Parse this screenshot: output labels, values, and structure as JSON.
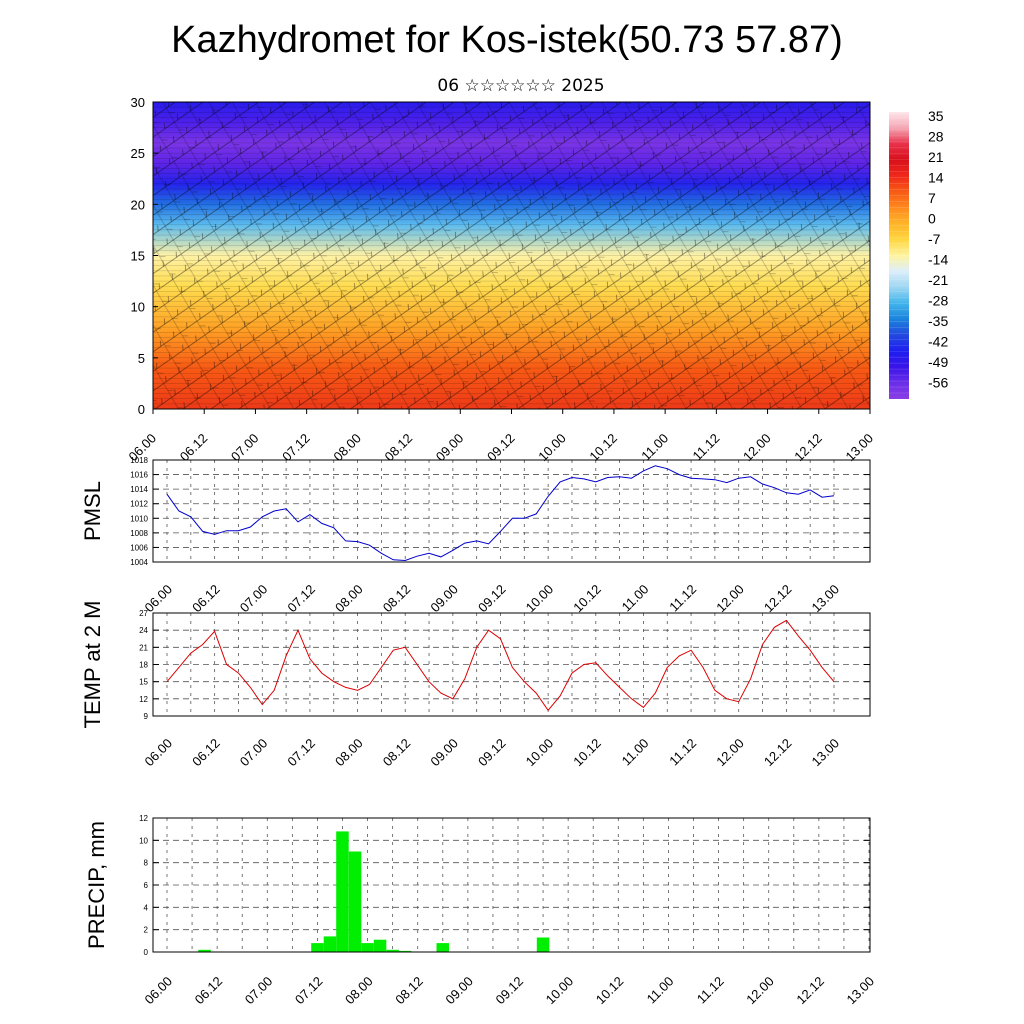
{
  "header": {
    "title": "Kazhydromet for Kos-istek(50.73 57.87)",
    "subtitle": "06 ☆☆☆☆☆☆ 2025"
  },
  "time_ticks": [
    "06.00",
    "06.12",
    "07.00",
    "07.12",
    "08.00",
    "08.12",
    "09.00",
    "09.12",
    "10.00",
    "10.12",
    "11.00",
    "11.12",
    "12.00",
    "12.12",
    "13.00"
  ],
  "colors": {
    "pmsl_line": "#0000cc",
    "temp_line": "#dd0000",
    "precip_bar": "#00ee00",
    "grid": "#555555"
  },
  "chart_data": [
    {
      "type": "heatmap",
      "name": "cross-section",
      "x": "time_ticks",
      "xlim": [
        0,
        168
      ],
      "ylim": [
        0,
        30
      ],
      "yticks": [
        0,
        5,
        10,
        15,
        20,
        25,
        30
      ],
      "has_wind_barbs": true,
      "colorbar": {
        "labels": [
          "35",
          "28",
          "21",
          "14",
          "7",
          "0",
          "-7",
          "-14",
          "-21",
          "-28",
          "-35",
          "-42",
          "-49",
          "-56"
        ],
        "colors": [
          "#ffe6ea",
          "#f4a6b4",
          "#e9304a",
          "#d8101c",
          "#f0281a",
          "#f85a14",
          "#ff8a1e",
          "#ffb428",
          "#ffd640",
          "#fff4a0",
          "#dceefa",
          "#9dd6f2",
          "#42b4ec",
          "#1a82dc",
          "#2248e0",
          "#1e1ef0",
          "#3a14e8",
          "#6a2ee8",
          "#8a3ee6"
        ]
      },
      "profile": {
        "levels": [
          0,
          4,
          8,
          12,
          15,
          18,
          20,
          22,
          24,
          26,
          28,
          30
        ],
        "values": [
          24,
          20,
          10,
          0,
          -6,
          -22,
          -33,
          -45,
          -54,
          -58,
          -52,
          -47
        ]
      }
    },
    {
      "type": "line",
      "ylabel": "PMSL",
      "ylim": [
        1004,
        1018
      ],
      "yticks": [
        1004,
        1006,
        1008,
        1010,
        1012,
        1014,
        1016,
        1018
      ],
      "x": [
        0,
        3,
        6,
        9,
        12,
        15,
        18,
        21,
        24,
        27,
        30,
        33,
        36,
        39,
        42,
        45,
        48,
        51,
        54,
        57,
        60,
        63,
        66,
        69,
        72,
        75,
        78,
        81,
        84,
        87,
        90,
        93,
        96,
        99,
        102,
        105,
        108,
        111,
        114,
        117,
        120,
        123,
        126,
        129,
        132,
        135,
        138,
        141,
        144,
        147,
        150,
        153,
        156,
        159,
        162,
        165,
        168
      ],
      "values": [
        1013.3,
        1011.0,
        1010.2,
        1008.2,
        1007.8,
        1008.3,
        1008.3,
        1008.8,
        1010.2,
        1011.0,
        1011.3,
        1009.5,
        1010.5,
        1009.3,
        1008.7,
        1006.9,
        1006.8,
        1006.3,
        1005.2,
        1004.3,
        1004.2,
        1004.8,
        1005.2,
        1004.7,
        1005.6,
        1006.6,
        1006.9,
        1006.5,
        1008.2,
        1010.0,
        1010.0,
        1010.6,
        1013.0,
        1015.0,
        1015.6,
        1015.4,
        1015.0,
        1015.6,
        1015.7,
        1015.5,
        1016.5,
        1017.2,
        1016.8,
        1016.0,
        1015.5,
        1015.4,
        1015.3,
        1014.9,
        1015.5,
        1015.7,
        1014.7,
        1014.2,
        1013.5,
        1013.3,
        1013.9,
        1012.9,
        1013.1
      ]
    },
    {
      "type": "line",
      "ylabel": "TEMP at 2 M",
      "ylim": [
        9,
        27
      ],
      "yticks": [
        9,
        12,
        15,
        18,
        21,
        24,
        27
      ],
      "x": [
        0,
        3,
        6,
        9,
        12,
        15,
        18,
        21,
        24,
        27,
        30,
        33,
        36,
        39,
        42,
        45,
        48,
        51,
        54,
        57,
        60,
        63,
        66,
        69,
        72,
        75,
        78,
        81,
        84,
        87,
        90,
        93,
        96,
        99,
        102,
        105,
        108,
        111,
        114,
        117,
        120,
        123,
        126,
        129,
        132,
        135,
        138,
        141,
        144,
        147,
        150,
        153,
        156,
        159,
        162,
        165,
        168
      ],
      "values": [
        15,
        17.5,
        20,
        21.5,
        23.8,
        18,
        16.5,
        14,
        11,
        13.5,
        19.5,
        24,
        19,
        16.5,
        15,
        14,
        13.5,
        14.5,
        17.5,
        20.5,
        21,
        18,
        15,
        13,
        12,
        15.5,
        21,
        24,
        22.5,
        17.5,
        15,
        13,
        10,
        12.5,
        16.5,
        18,
        18.3,
        16,
        14,
        12,
        10.5,
        13,
        17.5,
        19.5,
        20.5,
        17.5,
        13.5,
        12,
        11.5,
        15.5,
        21.5,
        24.5,
        25.7,
        23,
        20.5,
        17.5,
        15
      ]
    },
    {
      "type": "bar",
      "ylabel": "PRECIP, mm",
      "ylim": [
        0,
        12
      ],
      "yticks": [
        0,
        2,
        4,
        6,
        8,
        10,
        12
      ],
      "x": [
        9,
        36,
        39,
        42,
        45,
        48,
        51,
        54,
        57,
        66,
        90
      ],
      "values": [
        0.2,
        0.8,
        1.4,
        10.8,
        9.0,
        0.8,
        1.1,
        0.2,
        0.1,
        0.8,
        1.3
      ]
    }
  ]
}
